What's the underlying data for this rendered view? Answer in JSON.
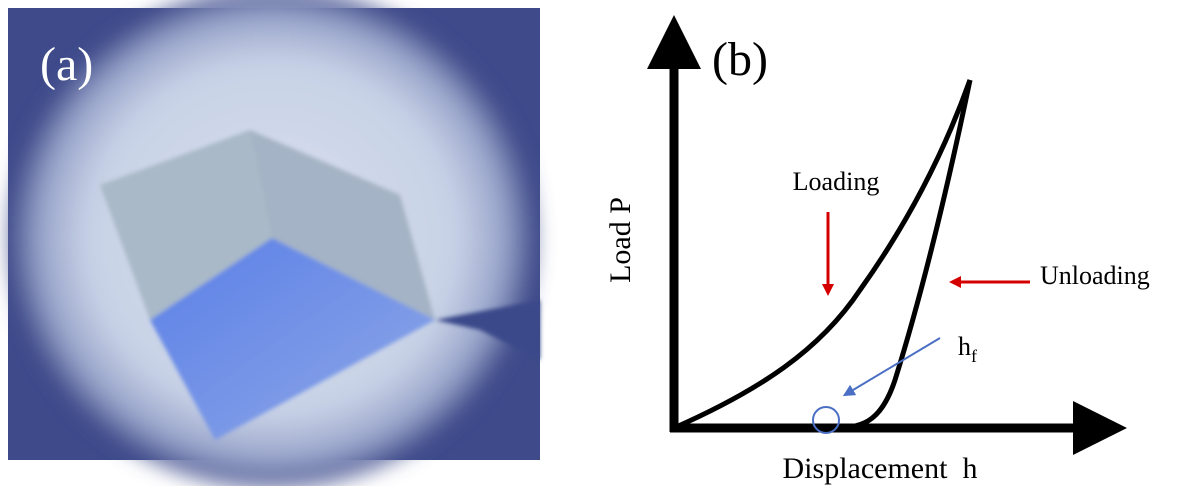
{
  "panel_a": {
    "label": "(a)"
  },
  "panel_b": {
    "label": "(b)",
    "y_axis_label": "Load P",
    "x_axis_label": "Displacement  h",
    "annotations": {
      "loading": "Loading",
      "unloading": "Unloading",
      "final_depth": {
        "main": "h",
        "sub": "f"
      }
    }
  }
}
